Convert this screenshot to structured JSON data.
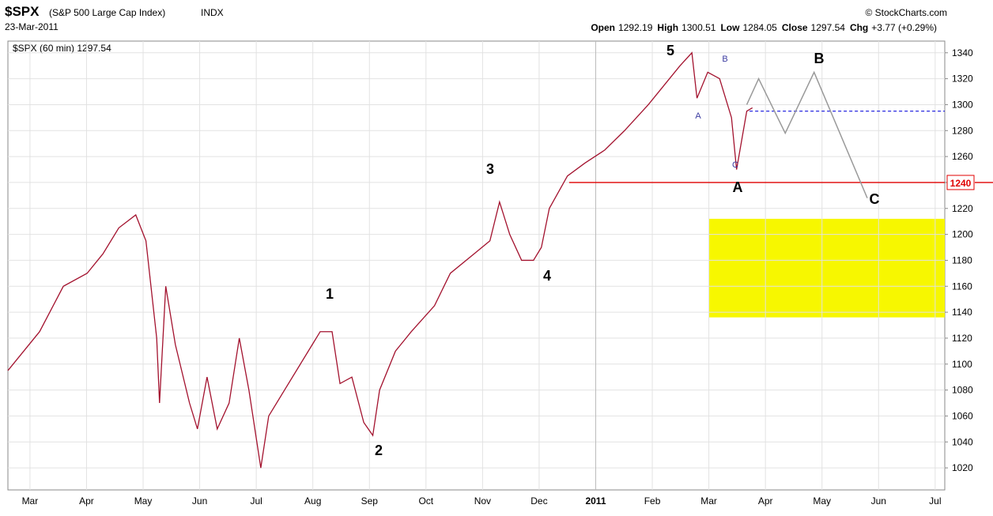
{
  "header": {
    "symbol": "$SPX",
    "name": "(S&P 500 Large Cap Index)",
    "exchange": "INDX",
    "date": "23-Mar-2011",
    "copyright": "© StockCharts.com",
    "quote": [
      {
        "label": "Open",
        "value": "1292.19"
      },
      {
        "label": "High",
        "value": "1300.51"
      },
      {
        "label": "Low",
        "value": "1284.05"
      },
      {
        "label": "Close",
        "value": "1297.54"
      },
      {
        "label": "Chg",
        "value": "+3.77 (+0.29%)"
      }
    ]
  },
  "chart_data": {
    "type": "line",
    "legend": "$SPX (60 min) 1297.54",
    "xlim": [
      -0.39,
      16.17
    ],
    "ylim": [
      1003,
      1349
    ],
    "xticks": [
      {
        "value": 0,
        "label": "Mar"
      },
      {
        "value": 1,
        "label": "Apr"
      },
      {
        "value": 2,
        "label": "May"
      },
      {
        "value": 3,
        "label": "Jun"
      },
      {
        "value": 4,
        "label": "Jul"
      },
      {
        "value": 5,
        "label": "Aug"
      },
      {
        "value": 6,
        "label": "Sep"
      },
      {
        "value": 7,
        "label": "Oct"
      },
      {
        "value": 8,
        "label": "Nov"
      },
      {
        "value": 9,
        "label": "Dec"
      },
      {
        "value": 10,
        "label": "2011"
      },
      {
        "value": 11,
        "label": "Feb"
      },
      {
        "value": 12,
        "label": "Mar"
      },
      {
        "value": 13,
        "label": "Apr"
      },
      {
        "value": 14,
        "label": "May"
      },
      {
        "value": 15,
        "label": "Jun"
      },
      {
        "value": 16,
        "label": "Jul"
      }
    ],
    "yticks": [
      1020,
      1040,
      1060,
      1080,
      1100,
      1120,
      1140,
      1160,
      1180,
      1200,
      1220,
      1240,
      1260,
      1280,
      1300,
      1320,
      1340
    ],
    "grid": true,
    "series": [
      {
        "color": "#a3122e",
        "x": [
          -0.39,
          -0.11,
          0.17,
          0.59,
          1.01,
          1.29,
          1.57,
          1.87,
          2.05,
          2.24,
          2.29,
          2.4,
          2.57,
          2.82,
          2.96,
          3.13,
          3.31,
          3.52,
          3.7,
          3.87,
          4.08,
          4.22,
          4.5,
          4.78,
          4.99,
          5.13,
          5.34,
          5.48,
          5.69,
          5.9,
          6.06,
          6.18,
          6.46,
          6.74,
          7.15,
          7.43,
          7.85,
          8.13,
          8.3,
          8.48,
          8.69,
          8.9,
          9.04,
          9.18,
          9.5,
          9.81,
          10.16,
          10.51,
          10.93,
          11.21,
          11.49,
          11.7,
          11.79,
          11.98,
          12.19,
          12.4,
          12.49,
          12.67,
          12.77
        ],
        "values": [
          1095,
          1110,
          1125,
          1160,
          1170,
          1185,
          1205,
          1215,
          1195,
          1120,
          1070,
          1160,
          1115,
          1070,
          1050,
          1090,
          1050,
          1070,
          1120,
          1080,
          1020,
          1060,
          1080,
          1100,
          1115,
          1125,
          1125,
          1085,
          1090,
          1055,
          1045,
          1080,
          1110,
          1125,
          1145,
          1170,
          1185,
          1195,
          1225,
          1200,
          1180,
          1180,
          1190,
          1220,
          1245,
          1255,
          1265,
          1280,
          1300,
          1315,
          1330,
          1340,
          1305,
          1325,
          1320,
          1290,
          1250,
          1295,
          1297.54
        ]
      },
      {
        "color": "#999999",
        "x": [
          12.67,
          12.88,
          13.35,
          13.86,
          14.8
        ],
        "values": [
          1300,
          1320,
          1278,
          1325,
          1228
        ]
      }
    ],
    "levels": [
      {
        "value": 1240,
        "label": "1240",
        "color": "#e00000",
        "from": 9.53
      },
      {
        "value": 1295,
        "color": "#2a2ae0",
        "from": 12.72,
        "dashed": true
      }
    ],
    "zone": {
      "from": 12.0,
      "low": 1136,
      "high": 1212,
      "color": "#f7f700"
    },
    "annotations": [
      "5",
      "1",
      "2",
      "3",
      "4",
      "A",
      "B",
      "C",
      "A",
      "B",
      "C"
    ]
  }
}
